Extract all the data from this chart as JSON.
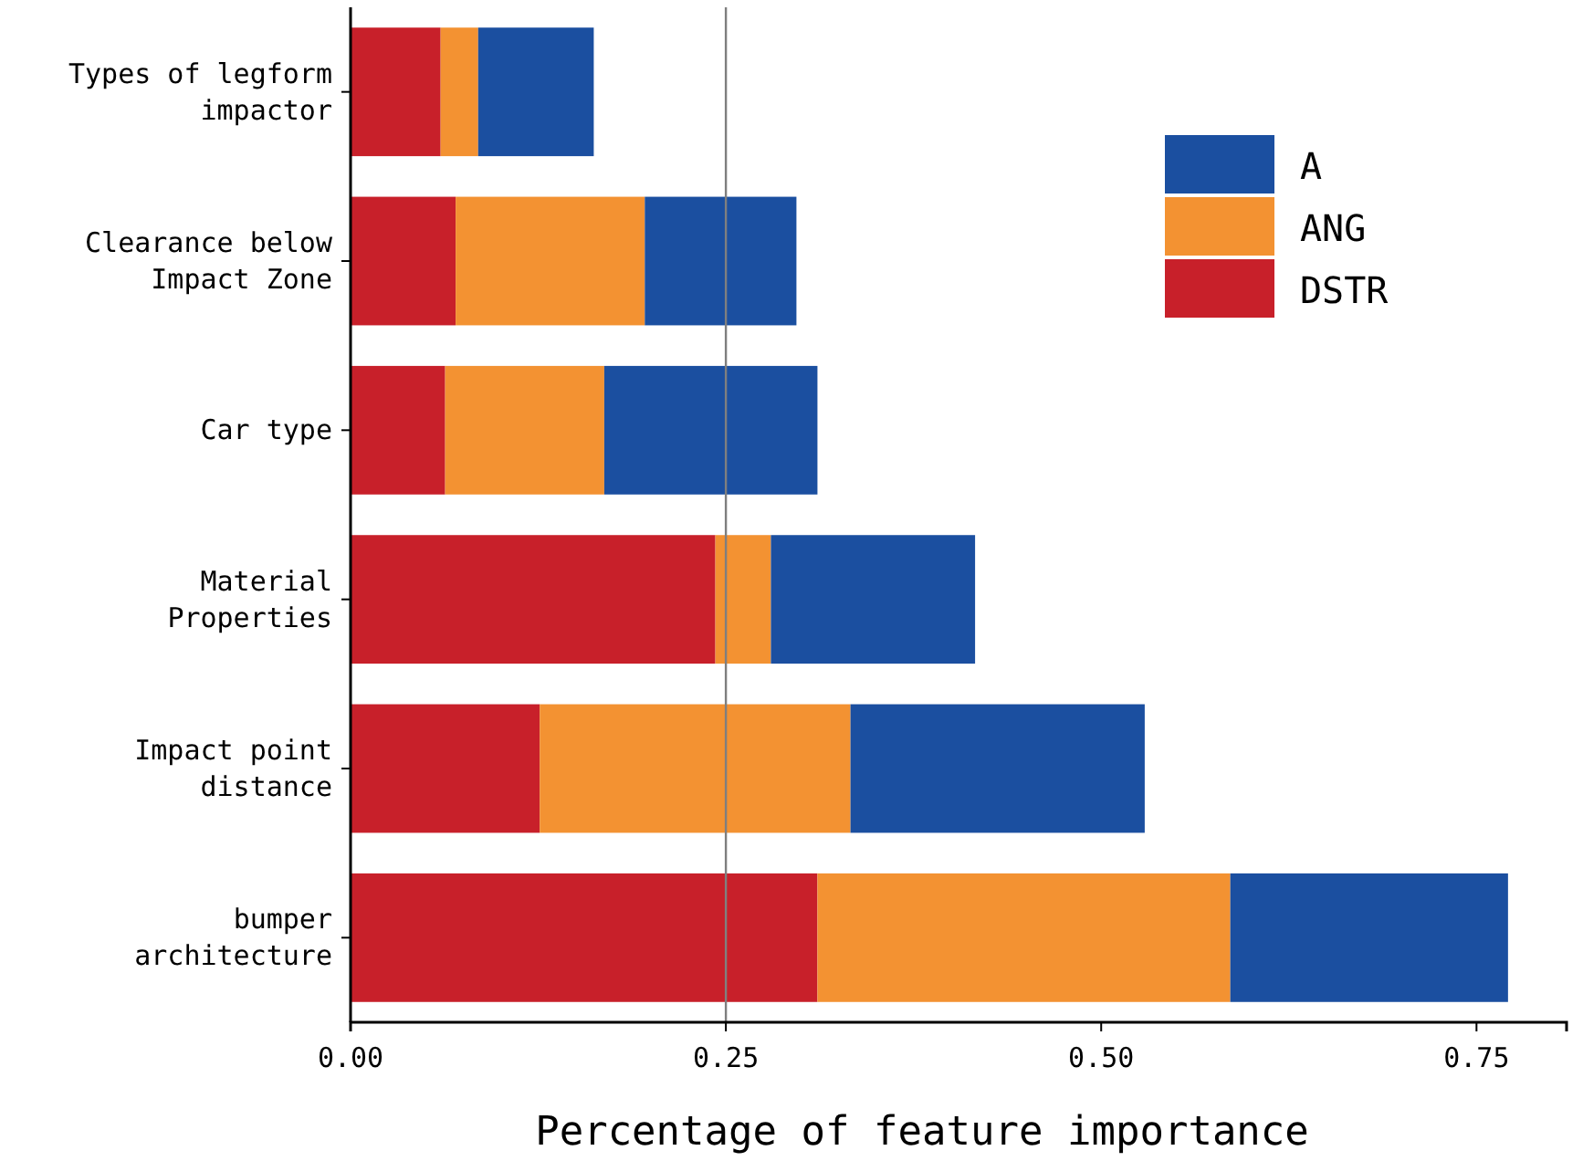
{
  "chart_data": {
    "type": "bar",
    "orientation": "horizontal",
    "stacked": true,
    "xlabel": "Percentage of feature importance",
    "categories": [
      "Types of legform impactor",
      "Clearance below Impact Zone",
      "Car type",
      "Material Properties",
      "Impact point distance",
      "bumper architecture"
    ],
    "series": [
      {
        "name": "DSTR",
        "color": "#c8202a",
        "values": [
          0.06,
          0.07,
          0.063,
          0.243,
          0.126,
          0.311
        ]
      },
      {
        "name": "ANG",
        "color": "#f39232",
        "values": [
          0.025,
          0.126,
          0.106,
          0.037,
          0.207,
          0.275
        ]
      },
      {
        "name": "A",
        "color": "#1b4fa0",
        "values": [
          0.077,
          0.101,
          0.142,
          0.136,
          0.196,
          0.185
        ]
      }
    ],
    "xlim": [
      0,
      0.81
    ],
    "xticks": [
      {
        "value": 0,
        "label": "0.00"
      },
      {
        "value": 0.25,
        "label": "0.25"
      },
      {
        "value": 0.5,
        "label": "0.50"
      },
      {
        "value": 0.75,
        "label": "0.75"
      }
    ],
    "ref_lines": [
      {
        "axis": "x",
        "value": 0.25,
        "color": "#7f7f7f"
      }
    ],
    "legend": "top right",
    "grid": false
  }
}
